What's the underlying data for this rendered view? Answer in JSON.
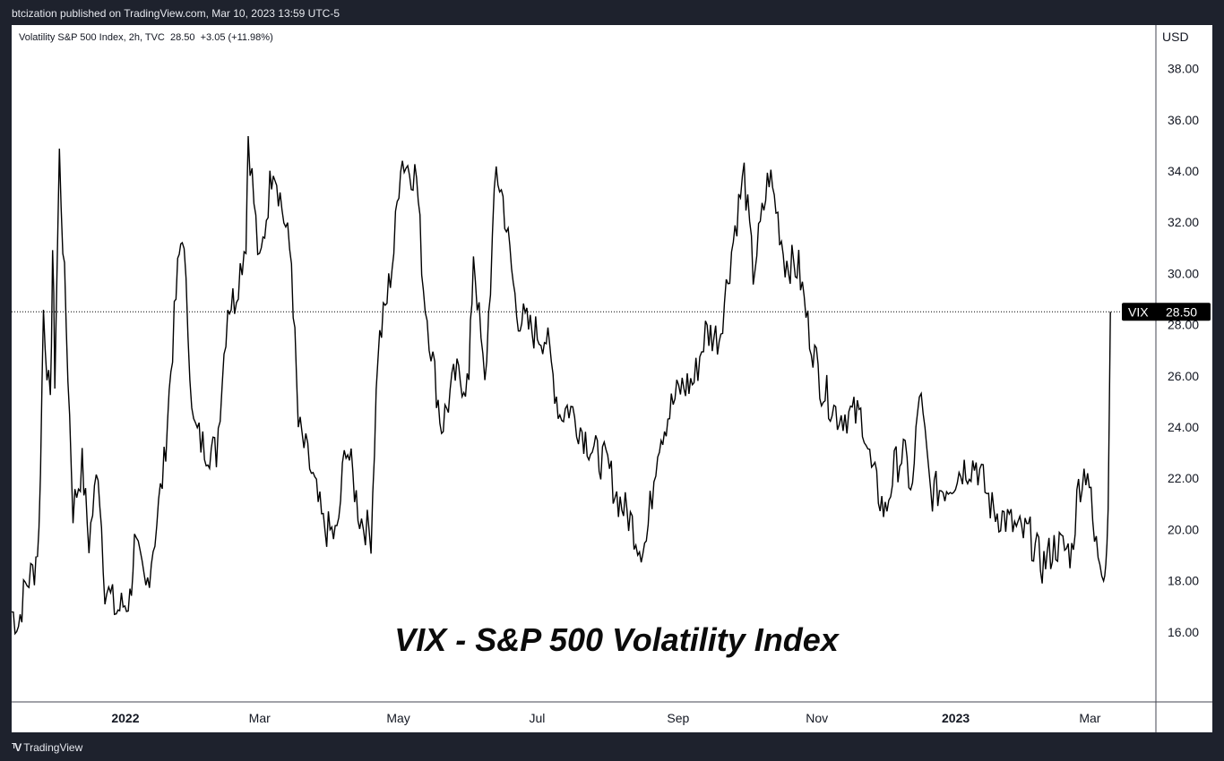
{
  "header": {
    "published_by": "btcization published on TradingView.com, Mar 10, 2023 13:59 UTC-5"
  },
  "legend": {
    "text": "Volatility S&P 500 Index, 2h, TVC  28.50  +3.05 (+11.98%)"
  },
  "axis": {
    "unit": "USD"
  },
  "watermark": "VIX - S&P 500 Volatility Index",
  "price_tag": {
    "symbol": "VIX",
    "value": "28.50"
  },
  "footer": {
    "brand": "TradingView",
    "logo_icon": "tradingview-logo-icon"
  },
  "colors": {
    "line": "#000000",
    "background": "#ffffff",
    "frame": "#1e222d",
    "tag_bg": "#000000",
    "tag_text": "#ffffff"
  },
  "chart_data": {
    "type": "line",
    "title": "",
    "xlabel": "",
    "ylabel": "",
    "ylim": [
      14,
      39
    ],
    "xlim": [
      "2021-11-12",
      "2023-03-30"
    ],
    "grid": false,
    "y_ticks": [
      "38.00",
      "36.00",
      "34.00",
      "32.00",
      "30.00",
      "28.00",
      "26.00",
      "24.00",
      "22.00",
      "20.00",
      "18.00",
      "16.00"
    ],
    "x_ticks": [
      {
        "label": "2022",
        "date": "2022-01-01",
        "bold": true
      },
      {
        "label": "Mar",
        "date": "2022-03-01",
        "bold": false
      },
      {
        "label": "May",
        "date": "2022-05-01",
        "bold": false
      },
      {
        "label": "Jul",
        "date": "2022-07-01",
        "bold": false
      },
      {
        "label": "Sep",
        "date": "2022-09-01",
        "bold": false
      },
      {
        "label": "Nov",
        "date": "2022-11-01",
        "bold": false
      },
      {
        "label": "2023",
        "date": "2023-01-01",
        "bold": true
      },
      {
        "label": "Mar",
        "date": "2023-03-01",
        "bold": false
      }
    ],
    "last_value": 28.5,
    "series": [
      {
        "x": [
          "2021-11-12",
          "2021-11-15",
          "2021-11-18",
          "2021-11-22",
          "2021-11-24",
          "2021-11-26",
          "2021-11-29",
          "2021-11-30",
          "2021-12-01",
          "2021-12-03",
          "2021-12-06",
          "2021-12-09",
          "2021-12-13",
          "2021-12-16",
          "2021-12-20",
          "2021-12-23",
          "2021-12-28",
          "2022-01-03",
          "2022-01-05",
          "2022-01-10",
          "2022-01-14",
          "2022-01-18",
          "2022-01-24",
          "2022-01-26",
          "2022-01-31",
          "2022-02-04",
          "2022-02-10",
          "2022-02-15",
          "2022-02-18",
          "2022-02-23",
          "2022-02-24",
          "2022-03-01",
          "2022-03-07",
          "2022-03-10",
          "2022-03-15",
          "2022-03-18",
          "2022-03-23",
          "2022-03-29",
          "2022-04-04",
          "2022-04-08",
          "2022-04-14",
          "2022-04-19",
          "2022-04-22",
          "2022-04-26",
          "2022-04-29",
          "2022-05-02",
          "2022-05-09",
          "2022-05-12",
          "2022-05-17",
          "2022-05-20",
          "2022-05-26",
          "2022-06-01",
          "2022-06-03",
          "2022-06-08",
          "2022-06-13",
          "2022-06-16",
          "2022-06-22",
          "2022-06-28",
          "2022-07-05",
          "2022-07-11",
          "2022-07-15",
          "2022-07-20",
          "2022-07-26",
          "2022-08-01",
          "2022-08-05",
          "2022-08-11",
          "2022-08-15",
          "2022-08-18",
          "2022-08-23",
          "2022-08-29",
          "2022-09-02",
          "2022-09-08",
          "2022-09-13",
          "2022-09-19",
          "2022-09-26",
          "2022-09-30",
          "2022-10-04",
          "2022-10-11",
          "2022-10-14",
          "2022-10-18",
          "2022-10-24",
          "2022-10-28",
          "2022-11-03",
          "2022-11-10",
          "2022-11-15",
          "2022-11-21",
          "2022-11-25",
          "2022-12-01",
          "2022-12-05",
          "2022-12-09",
          "2022-12-13",
          "2022-12-16",
          "2022-12-21",
          "2022-12-28",
          "2023-01-04",
          "2023-01-10",
          "2023-01-17",
          "2023-01-23",
          "2023-01-30",
          "2023-02-02",
          "2023-02-08",
          "2023-02-14",
          "2023-02-21",
          "2023-02-24",
          "2023-02-28",
          "2023-03-03",
          "2023-03-07",
          "2023-03-08",
          "2023-03-09",
          "2023-03-10"
        ],
        "y": [
          16.8,
          16.3,
          17.8,
          18.5,
          19.8,
          28.6,
          24.5,
          31.0,
          26.0,
          34.6,
          28.0,
          20.8,
          22.5,
          19.5,
          22.5,
          17.8,
          16.8,
          17.3,
          19.4,
          17.6,
          19.8,
          22.5,
          30.0,
          31.8,
          24.0,
          23.3,
          23.0,
          28.8,
          29.0,
          31.4,
          35.5,
          30.1,
          34.5,
          33.0,
          30.5,
          24.0,
          22.5,
          20.1,
          19.7,
          23.5,
          20.5,
          19.8,
          27.0,
          29.0,
          30.9,
          34.5,
          33.8,
          29.5,
          26.0,
          24.0,
          26.0,
          25.7,
          30.9,
          25.5,
          34.0,
          32.9,
          28.5,
          27.8,
          27.5,
          24.5,
          24.8,
          24.0,
          23.0,
          22.5,
          21.3,
          20.4,
          19.4,
          19.5,
          23.4,
          24.8,
          25.5,
          25.8,
          27.7,
          27.5,
          31.8,
          33.9,
          30.0,
          33.9,
          32.6,
          30.5,
          30.2,
          28.0,
          25.6,
          24.5,
          24.5,
          24.4,
          22.3,
          20.6,
          22.4,
          23.0,
          21.5,
          25.5,
          21.4,
          21.7,
          22.4,
          22.6,
          20.8,
          20.4,
          19.8,
          19.9,
          18.6,
          19.4,
          19.1,
          21.7,
          22.5,
          19.5,
          18.6,
          18.8,
          20.8,
          28.5
        ]
      }
    ]
  }
}
